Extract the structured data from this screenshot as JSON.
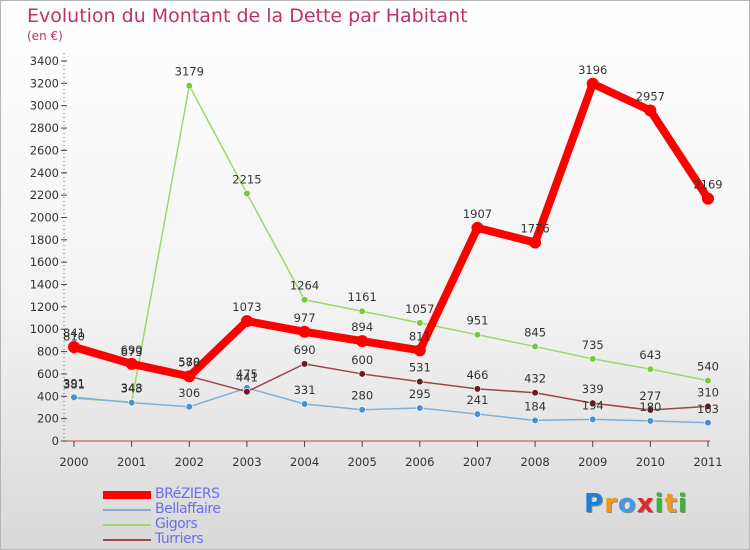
{
  "header": {
    "title": "Evolution du Montant de la Dette par Habitant",
    "subtitle": "(en €)"
  },
  "logo": {
    "letters": [
      {
        "char": "P",
        "color": "#1d7fd8"
      },
      {
        "char": "r",
        "color": "#f29a1d"
      },
      {
        "char": "o",
        "color": "#3b9be8"
      },
      {
        "char": "x",
        "color": "#e2262b"
      },
      {
        "char": "i",
        "color": "#3fb23b"
      },
      {
        "char": "t",
        "color": "#f29a1d"
      },
      {
        "char": "i",
        "color": "#3fb23b"
      }
    ]
  },
  "chart_data": {
    "type": "line",
    "title": "Evolution du Montant de la Dette par Habitant",
    "subtitle": "(en €)",
    "xlabel": "",
    "ylabel": "",
    "categories": [
      "2000",
      "2001",
      "2002",
      "2003",
      "2004",
      "2005",
      "2006",
      "2007",
      "2008",
      "2009",
      "2010",
      "2011"
    ],
    "ylim": [
      0,
      3400
    ],
    "yticks": [
      0,
      200,
      400,
      600,
      800,
      1000,
      1200,
      1400,
      1600,
      1800,
      2000,
      2200,
      2400,
      2600,
      2800,
      3000,
      3200,
      3400
    ],
    "grid": false,
    "legend_position": "bottom-left",
    "series": [
      {
        "name": "BRéZIERS",
        "color": "#ff0000",
        "marker_color": "#ff0000",
        "width": 8,
        "marker_r": 6,
        "values": [
          841,
          690,
          578,
          1073,
          977,
          894,
          811,
          1907,
          1776,
          3196,
          2957,
          2169
        ]
      },
      {
        "name": "Bellaffaire",
        "color": "#7fb0d8",
        "marker_color": "#4a90d0",
        "width": 1.5,
        "marker_r": 3.3,
        "values": [
          391,
          343,
          306,
          475,
          331,
          280,
          295,
          241,
          184,
          194,
          180,
          163
        ]
      },
      {
        "name": "Gigors",
        "color": "#9ed86a",
        "marker_color": "#7cc63c",
        "width": 1.5,
        "marker_r": 3.3,
        "values": [
          381,
          348,
          3179,
          2215,
          1264,
          1161,
          1057,
          951,
          845,
          735,
          643,
          540
        ]
      },
      {
        "name": "Turriers",
        "color": "#9a4848",
        "marker_color": "#6b1a1a",
        "width": 1.5,
        "marker_r": 3.3,
        "values": [
          810,
          673,
          580,
          441,
          690,
          600,
          531,
          466,
          432,
          339,
          277,
          310
        ]
      }
    ]
  }
}
